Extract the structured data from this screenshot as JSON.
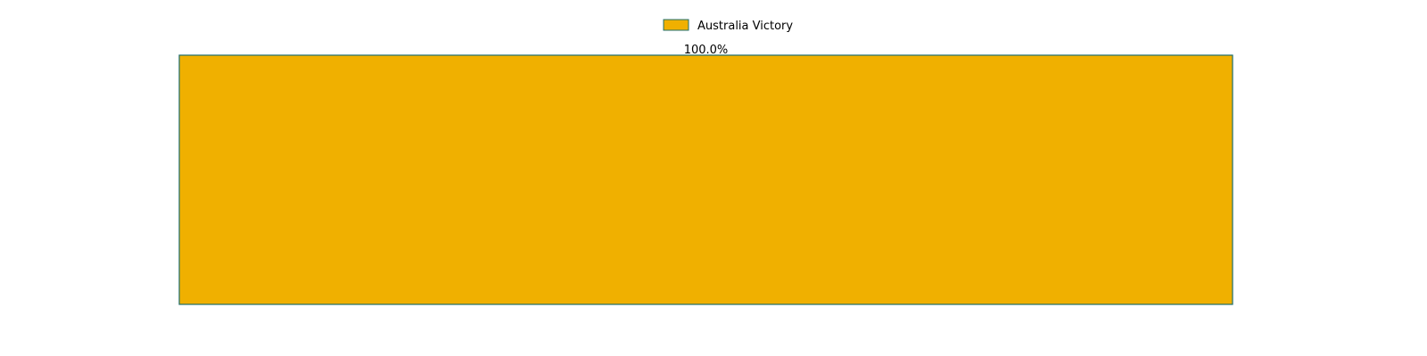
{
  "chart_data": {
    "type": "bar",
    "orientation": "horizontal-stacked",
    "categories": [
      ""
    ],
    "series": [
      {
        "name": "Australia Victory",
        "values": [
          100.0
        ],
        "label": "100.0%"
      }
    ],
    "axes_visible": false,
    "grid": false,
    "legend_position": "top-center",
    "xlim": [
      0,
      100
    ],
    "colors": {
      "bar_fill": "#F0B000",
      "bar_edge": "#1F6F6F"
    }
  }
}
